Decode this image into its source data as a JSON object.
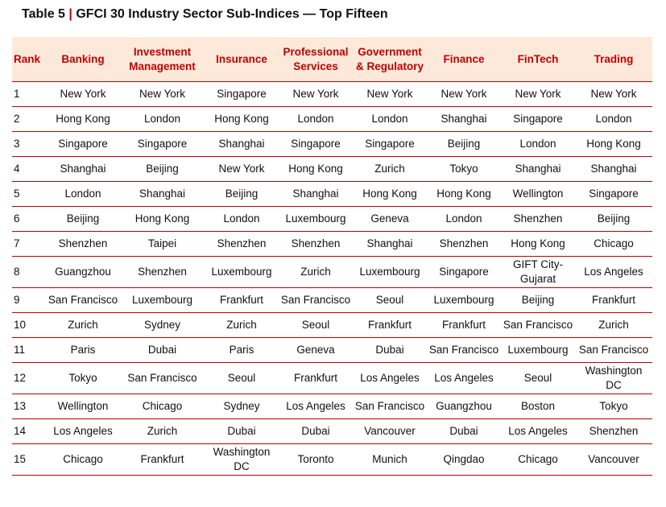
{
  "title": {
    "prefix": "Table 5",
    "separator": "|",
    "text": "GFCI 30 Industry Sector Sub-Indices — Top Fifteen"
  },
  "colors": {
    "accent": "#c00000",
    "header_bg": "#fde9d9"
  },
  "table": {
    "headers": [
      "Rank",
      "Banking",
      "Investment Management",
      "Insurance",
      "Professional Services",
      "Government & Regulatory",
      "Finance",
      "FinTech",
      "Trading"
    ],
    "rows": [
      [
        "1",
        "New York",
        "New York",
        "Singapore",
        "New York",
        "New York",
        "New York",
        "New York",
        "New York"
      ],
      [
        "2",
        "Hong Kong",
        "London",
        "Hong Kong",
        "London",
        "London",
        "Shanghai",
        "Singapore",
        "London"
      ],
      [
        "3",
        "Singapore",
        "Singapore",
        "Shanghai",
        "Singapore",
        "Singapore",
        "Beijing",
        "London",
        "Hong Kong"
      ],
      [
        "4",
        "Shanghai",
        "Beijing",
        "New York",
        "Hong Kong",
        "Zurich",
        "Tokyo",
        "Shanghai",
        "Shanghai"
      ],
      [
        "5",
        "London",
        "Shanghai",
        "Beijing",
        "Shanghai",
        "Hong Kong",
        "Hong Kong",
        "Wellington",
        "Singapore"
      ],
      [
        "6",
        "Beijing",
        "Hong Kong",
        "London",
        "Luxembourg",
        "Geneva",
        "London",
        "Shenzhen",
        "Beijing"
      ],
      [
        "7",
        "Shenzhen",
        "Taipei",
        "Shenzhen",
        "Shenzhen",
        "Shanghai",
        "Shenzhen",
        "Hong Kong",
        "Chicago"
      ],
      [
        "8",
        "Guangzhou",
        "Shenzhen",
        "Luxembourg",
        "Zurich",
        "Luxembourg",
        "Singapore",
        "GIFT City-Gujarat",
        "Los Angeles"
      ],
      [
        "9",
        "San Francisco",
        "Luxembourg",
        "Frankfurt",
        "San Francisco",
        "Seoul",
        "Luxembourg",
        "Beijing",
        "Frankfurt"
      ],
      [
        "10",
        "Zurich",
        "Sydney",
        "Zurich",
        "Seoul",
        "Frankfurt",
        "Frankfurt",
        "San Francisco",
        "Zurich"
      ],
      [
        "11",
        "Paris",
        "Dubai",
        "Paris",
        "Geneva",
        "Dubai",
        "San Francisco",
        "Luxembourg",
        "San Francisco"
      ],
      [
        "12",
        "Tokyo",
        "San Francisco",
        "Seoul",
        "Frankfurt",
        "Los Angeles",
        "Los Angeles",
        "Seoul",
        "Washington DC"
      ],
      [
        "13",
        "Wellington",
        "Chicago",
        "Sydney",
        "Los Angeles",
        "San Francisco",
        "Guangzhou",
        "Boston",
        "Tokyo"
      ],
      [
        "14",
        "Los Angeles",
        "Zurich",
        "Dubai",
        "Dubai",
        "Vancouver",
        "Dubai",
        "Los Angeles",
        "Shenzhen"
      ],
      [
        "15",
        "Chicago",
        "Frankfurt",
        "Washington DC",
        "Toronto",
        "Munich",
        "Qingdao",
        "Chicago",
        "Vancouver"
      ]
    ]
  }
}
